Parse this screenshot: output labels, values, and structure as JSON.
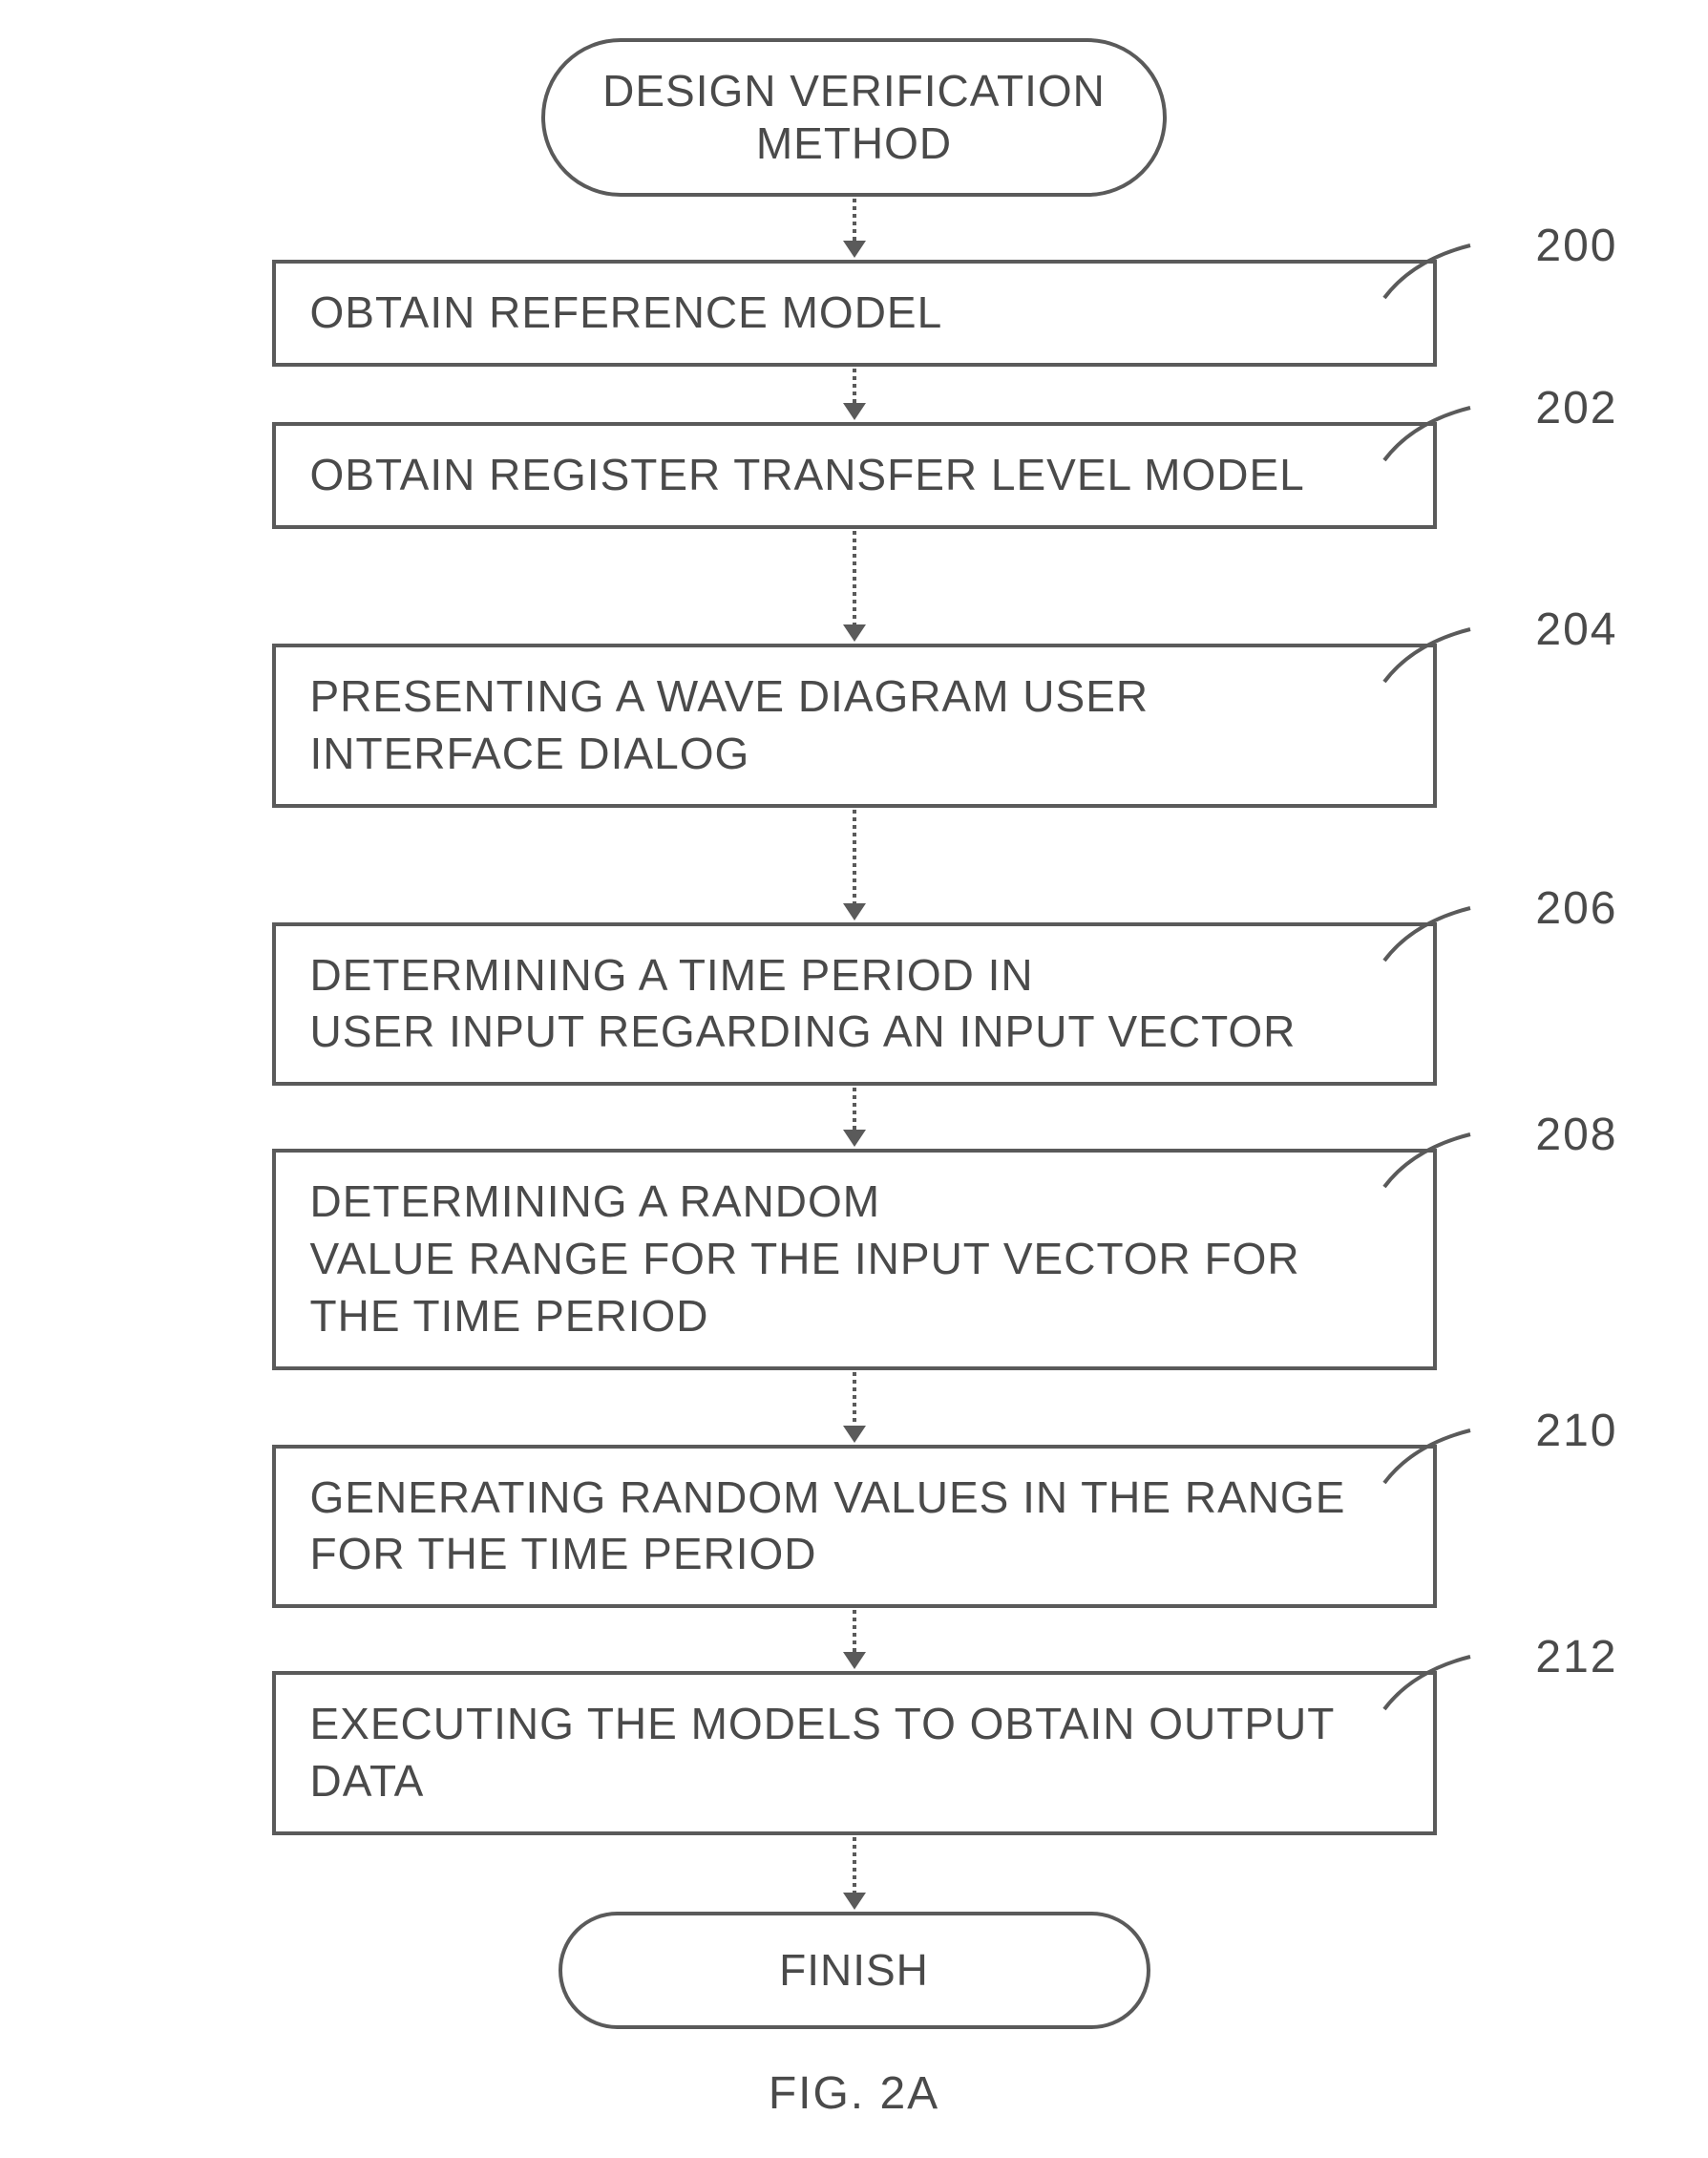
{
  "flowchart": {
    "type": "flowchart",
    "direction": "vertical",
    "border_color": "#5a5a5a",
    "border_width": 4,
    "background_color": "#ffffff",
    "text_color": "#4a4a4a",
    "font_size": 46,
    "font_family": "Arial",
    "letter_spacing": 1,
    "terminator_border_radius": 999,
    "process_width": 1220,
    "arrow_style": "dashed",
    "arrow_color": "#5a5a5a",
    "arrow_head_size": 18,
    "ref_label_font_size": 48,
    "connector_stroke_width": 4,
    "nodes": [
      {
        "id": "start",
        "shape": "terminator",
        "text": "DESIGN VERIFICATION\nMETHOD",
        "ref": null
      },
      {
        "id": "n200",
        "shape": "process",
        "text": "OBTAIN REFERENCE MODEL",
        "ref": "200",
        "arrow_height": 46
      },
      {
        "id": "n202",
        "shape": "process",
        "text": "OBTAIN REGISTER TRANSFER LEVEL MODEL",
        "ref": "202",
        "arrow_height": 38
      },
      {
        "id": "n204",
        "shape": "process",
        "text": "PRESENTING A WAVE DIAGRAM USER INTERFACE DIALOG",
        "ref": "204",
        "arrow_height": 100
      },
      {
        "id": "n206",
        "shape": "process",
        "text": "DETERMINING A TIME PERIOD IN\nUSER INPUT REGARDING AN INPUT VECTOR",
        "ref": "206",
        "arrow_height": 100
      },
      {
        "id": "n208",
        "shape": "process",
        "text": "DETERMINING A RANDOM\nVALUE RANGE FOR THE INPUT VECTOR FOR THE TIME PERIOD",
        "ref": "208",
        "arrow_height": 46
      },
      {
        "id": "n210",
        "shape": "process",
        "text": "GENERATING RANDOM VALUES IN THE RANGE FOR THE TIME PERIOD",
        "ref": "210",
        "arrow_height": 58
      },
      {
        "id": "n212",
        "shape": "process",
        "text": "EXECUTING THE MODELS TO OBTAIN OUTPUT DATA",
        "ref": "212",
        "arrow_height": 46
      },
      {
        "id": "finish",
        "shape": "terminator",
        "text": "FINISH",
        "ref": null,
        "arrow_height": 60
      }
    ],
    "caption": "FIG. 2A"
  }
}
